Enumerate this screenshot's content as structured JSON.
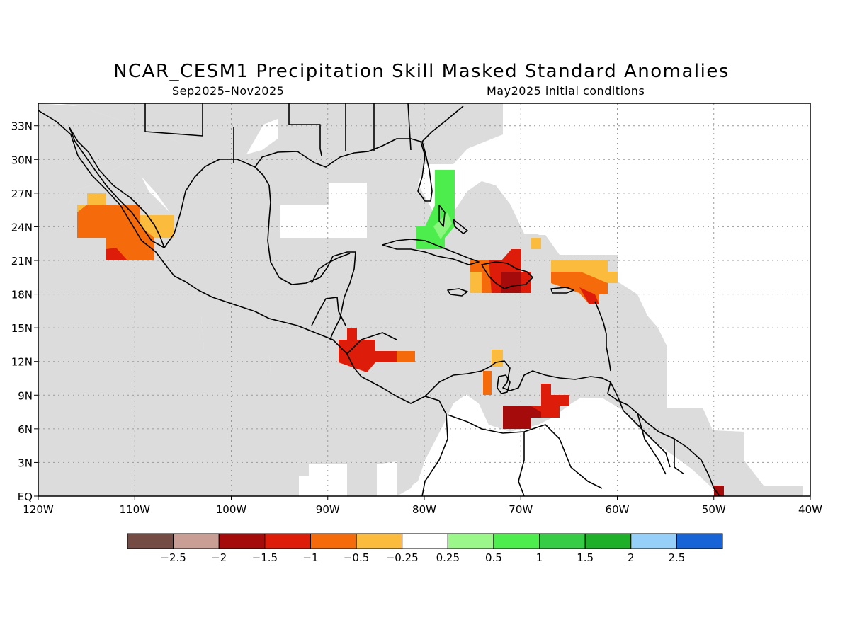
{
  "title": "NCAR_CESM1 Precipitation Skill Masked Standard Anomalies",
  "subtitle_left": "Sep2025–Nov2025",
  "subtitle_right": "May2025 initial conditions",
  "map": {
    "lon_range": [
      -120,
      -40
    ],
    "lat_range": [
      0,
      35
    ],
    "lon_tick_labels": [
      "120W",
      "110W",
      "100W",
      "90W",
      "80W",
      "70W",
      "60W",
      "50W",
      "40W"
    ],
    "lat_tick_labels": [
      "EQ",
      "3N",
      "6N",
      "9N",
      "12N",
      "15N",
      "18N",
      "21N",
      "24N",
      "27N",
      "30N",
      "33N"
    ],
    "grid": "dotted",
    "mask_color": "#dcdcdc",
    "regions": [
      {
        "name": "Baja California / Gulf of California",
        "category": "-1 to -0.5",
        "color": "#f56a0a"
      },
      {
        "name": "Central America (Honduras/Nicaragua)",
        "category": "-1.5 to -1",
        "color": "#de1c0a"
      },
      {
        "name": "Hispaniola",
        "category": "-1.5 to -1",
        "color": "#de1c0a"
      },
      {
        "name": "Puerto Rico / Leeward Islands",
        "category": "-1 to -0.5",
        "color": "#f56a0a"
      },
      {
        "name": "Venezuela (Maracaibo)",
        "category": "-1.5 to -1",
        "color": "#de1c0a"
      },
      {
        "name": "Florida Straits / Bahamas",
        "category": "0.5 to 1",
        "color": "#4ded4d"
      }
    ]
  },
  "colorbar": {
    "colors": [
      "#744c44",
      "#c89e95",
      "#a50b0b",
      "#de1c0a",
      "#f56a0a",
      "#fbbb3d",
      "#ffffff",
      "#9bf78a",
      "#4ded4d",
      "#36cc45",
      "#1fb02a",
      "#96cff7",
      "#1764d6"
    ],
    "labels": [
      "−2.5",
      "−2",
      "−1.5",
      "−1",
      "−0.5",
      "−0.25",
      "0.25",
      "0.5",
      "1",
      "1.5",
      "2",
      "2.5"
    ]
  }
}
